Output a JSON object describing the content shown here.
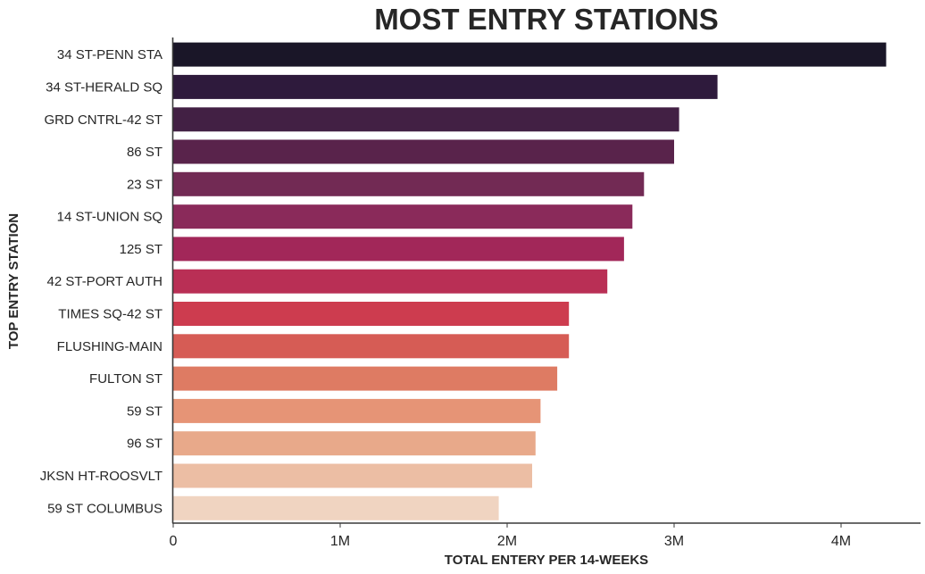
{
  "chart_data": {
    "type": "bar",
    "orientation": "horizontal",
    "title": "MOST ENTRY STATIONS",
    "xlabel": "TOTAL ENTERY PER 14-WEEKS",
    "ylabel": "TOP ENTRY STATION",
    "xlim": [
      0,
      4500000
    ],
    "x_ticks": [
      0,
      1000000,
      2000000,
      3000000,
      4000000
    ],
    "x_tick_labels": [
      "0",
      "1M",
      "2M",
      "3M",
      "4M"
    ],
    "grid": false,
    "legend": "none",
    "categories": [
      "34 ST-PENN STA",
      "34 ST-HERALD SQ",
      "GRD CNTRL-42 ST",
      "86 ST",
      "23 ST",
      "14 ST-UNION SQ",
      "125 ST",
      "42 ST-PORT AUTH",
      "TIMES SQ-42 ST",
      "FLUSHING-MAIN",
      "FULTON ST",
      "59 ST",
      "96 ST",
      "JKSN HT-ROOSVLT",
      "59 ST COLUMBUS"
    ],
    "values": [
      4270000,
      3260000,
      3030000,
      3000000,
      2820000,
      2750000,
      2700000,
      2600000,
      2370000,
      2370000,
      2300000,
      2200000,
      2170000,
      2150000,
      1950000
    ],
    "colors": [
      "#1a1628",
      "#2e1a3c",
      "#422044",
      "#59234b",
      "#722a54",
      "#8a2a5a",
      "#a22759",
      "#b92f55",
      "#cd3c4f",
      "#d65c55",
      "#de7b63",
      "#e69476",
      "#e8a98a",
      "#ecbea4",
      "#f0d4c1"
    ]
  }
}
